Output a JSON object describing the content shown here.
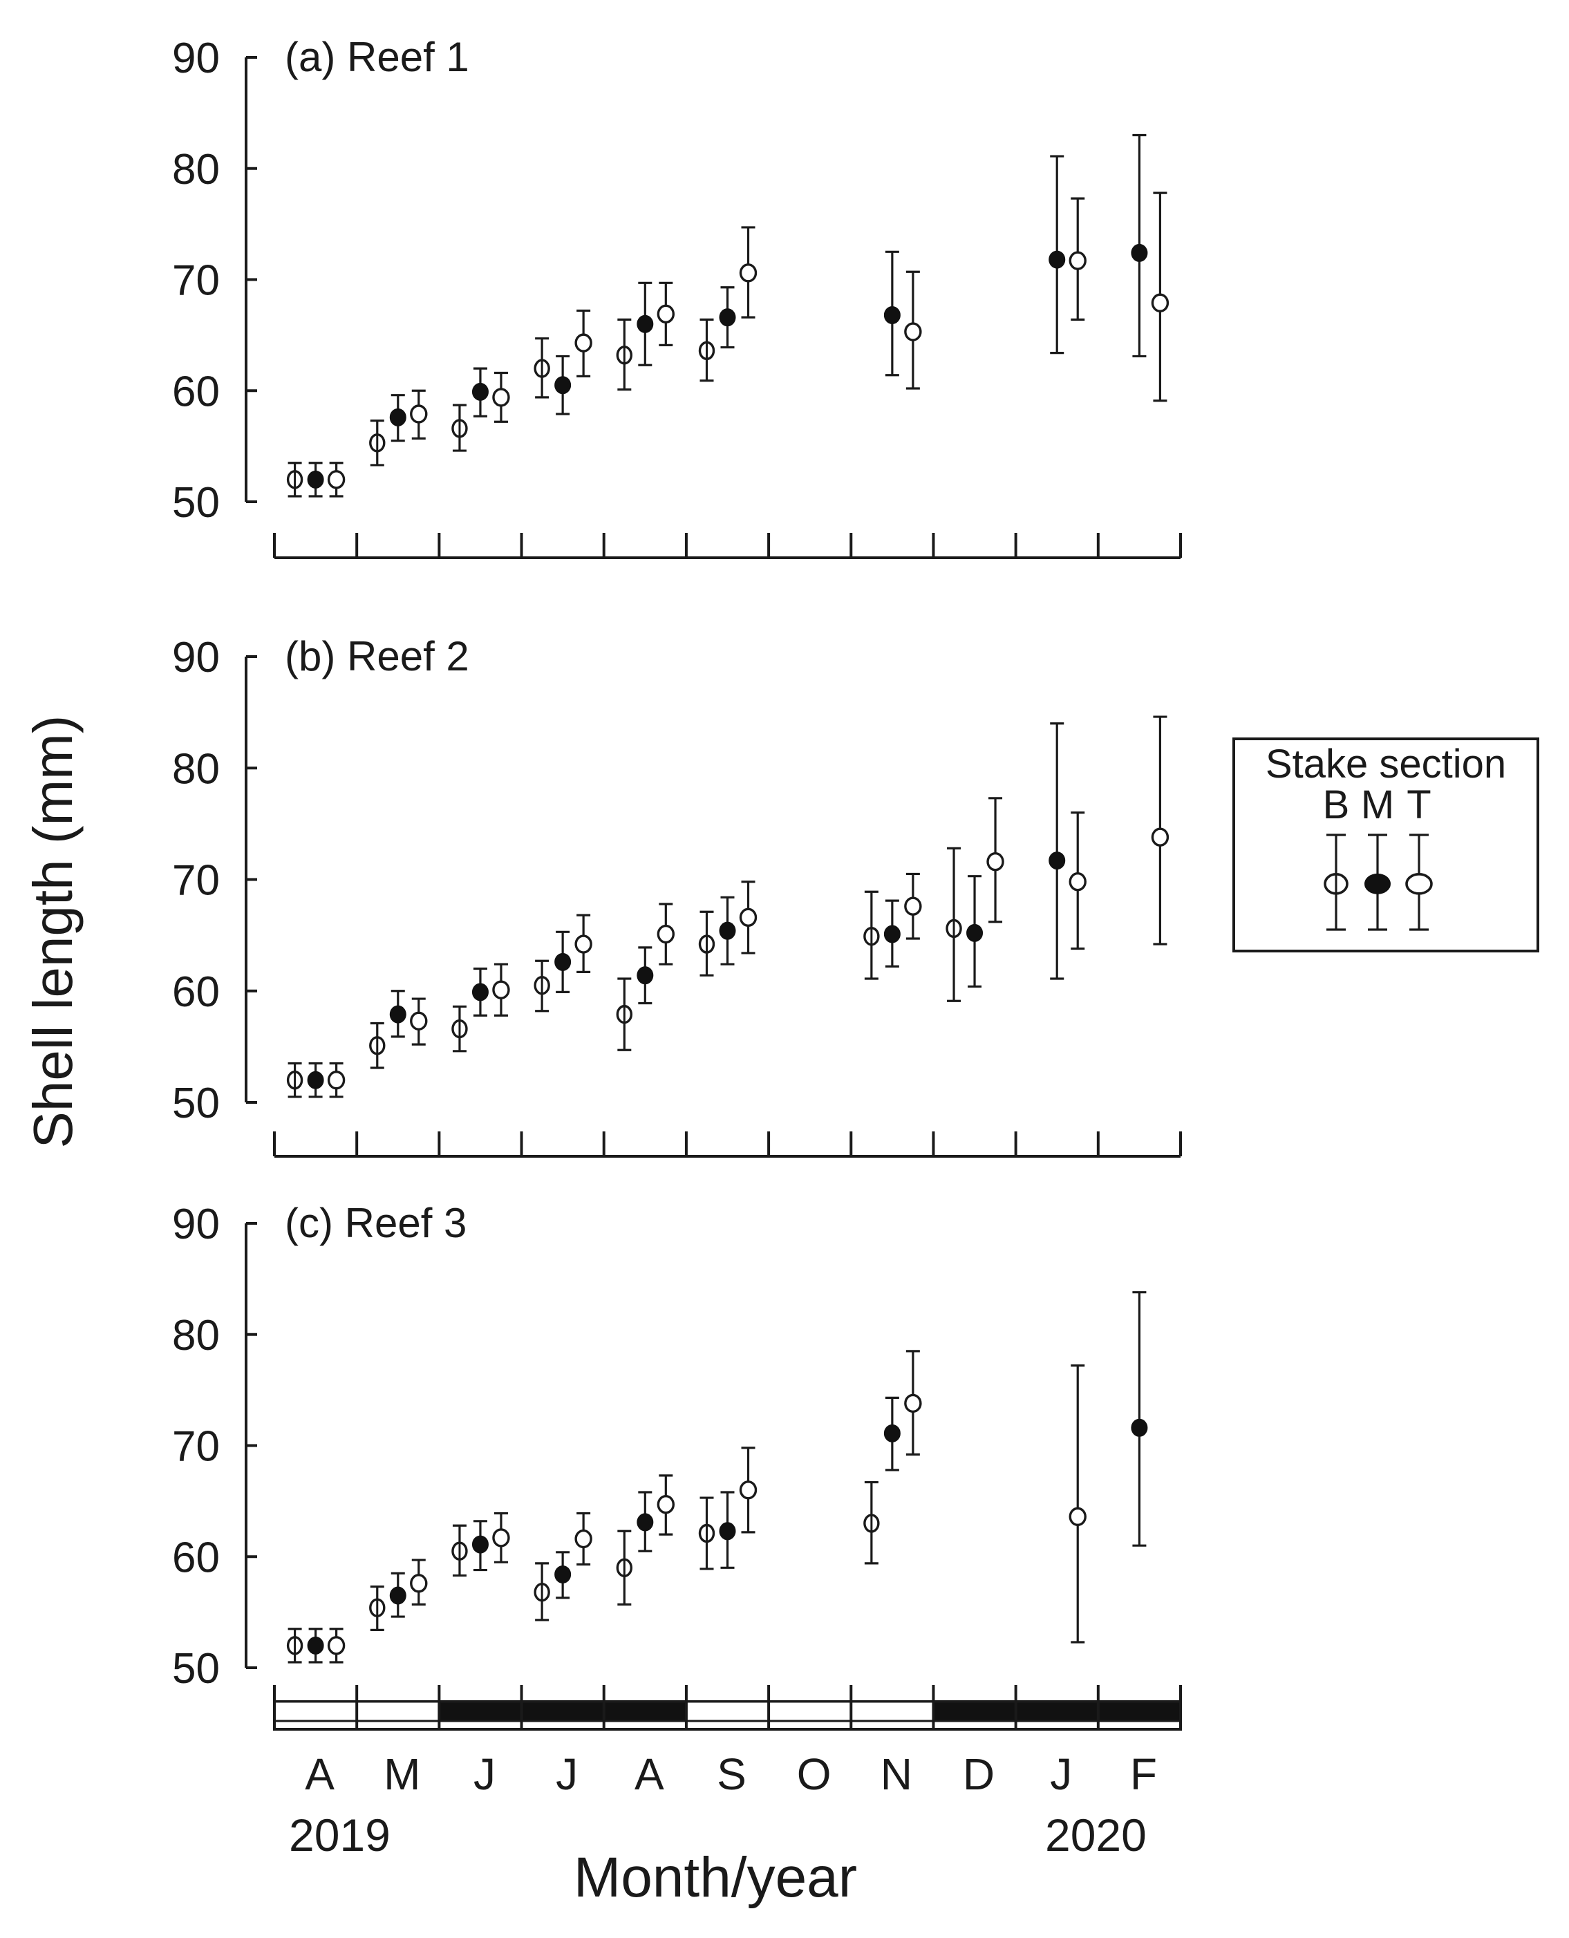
{
  "figure": {
    "ylabel": "Shell length (mm)",
    "xlabel": "Month/year",
    "year_start": "2019",
    "year_end": "2020",
    "months": [
      "A",
      "M",
      "J",
      "J",
      "A",
      "S",
      "O",
      "N",
      "D",
      "J",
      "F"
    ],
    "season_bar": [
      "white",
      "white",
      "black",
      "black",
      "black",
      "white",
      "white",
      "white",
      "black",
      "black",
      "black"
    ],
    "legend": {
      "title": "Stake section",
      "labels": [
        "B",
        "M",
        "T"
      ],
      "example_mean": 69.7,
      "example_low": 65.5,
      "example_high": 74.2
    }
  },
  "chart_data": [
    {
      "type": "scatter",
      "title": "(a) Reef 1",
      "ylim": [
        50,
        90
      ],
      "yticks": [
        50,
        60,
        70,
        80,
        90
      ],
      "series": [
        {
          "name": "B",
          "points": [
            {
              "x": 0,
              "y": 52.0,
              "lo": 50.5,
              "hi": 53.5
            },
            {
              "x": 1,
              "y": 55.3,
              "lo": 53.3,
              "hi": 57.3
            },
            {
              "x": 2,
              "y": 56.6,
              "lo": 54.6,
              "hi": 58.7
            },
            {
              "x": 3,
              "y": 62.0,
              "lo": 59.4,
              "hi": 64.7
            },
            {
              "x": 4,
              "y": 63.2,
              "lo": 60.1,
              "hi": 66.4
            },
            {
              "x": 5,
              "y": 63.6,
              "lo": 60.9,
              "hi": 66.4
            }
          ]
        },
        {
          "name": "M",
          "points": [
            {
              "x": 0,
              "y": 52.0,
              "lo": 50.5,
              "hi": 53.5
            },
            {
              "x": 1,
              "y": 57.6,
              "lo": 55.5,
              "hi": 59.6
            },
            {
              "x": 2,
              "y": 59.9,
              "lo": 57.7,
              "hi": 62.0
            },
            {
              "x": 3,
              "y": 60.5,
              "lo": 57.9,
              "hi": 63.1
            },
            {
              "x": 4,
              "y": 66.0,
              "lo": 62.3,
              "hi": 69.7
            },
            {
              "x": 5,
              "y": 66.6,
              "lo": 63.9,
              "hi": 69.3
            },
            {
              "x": 7,
              "y": 66.8,
              "lo": 61.4,
              "hi": 72.5
            },
            {
              "x": 9,
              "y": 71.8,
              "lo": 63.4,
              "hi": 81.1
            },
            {
              "x": 10,
              "y": 72.4,
              "lo": 63.1,
              "hi": 83.0
            }
          ]
        },
        {
          "name": "T",
          "points": [
            {
              "x": 0,
              "y": 52.0,
              "lo": 50.5,
              "hi": 53.5
            },
            {
              "x": 1,
              "y": 57.9,
              "lo": 55.7,
              "hi": 60.0
            },
            {
              "x": 2,
              "y": 59.4,
              "lo": 57.2,
              "hi": 61.6
            },
            {
              "x": 3,
              "y": 64.3,
              "lo": 61.3,
              "hi": 67.2
            },
            {
              "x": 4,
              "y": 66.9,
              "lo": 64.1,
              "hi": 69.7
            },
            {
              "x": 5,
              "y": 70.6,
              "lo": 66.6,
              "hi": 74.7
            },
            {
              "x": 7,
              "y": 65.3,
              "lo": 60.2,
              "hi": 70.7
            },
            {
              "x": 9,
              "y": 71.7,
              "lo": 66.4,
              "hi": 77.3
            },
            {
              "x": 10,
              "y": 67.9,
              "lo": 59.1,
              "hi": 77.8
            }
          ]
        }
      ]
    },
    {
      "type": "scatter",
      "title": "(b) Reef 2",
      "ylim": [
        50,
        90
      ],
      "yticks": [
        50,
        60,
        70,
        80,
        90
      ],
      "series": [
        {
          "name": "B",
          "points": [
            {
              "x": 0,
              "y": 52.0,
              "lo": 50.5,
              "hi": 53.5
            },
            {
              "x": 1,
              "y": 55.1,
              "lo": 53.1,
              "hi": 57.1
            },
            {
              "x": 2,
              "y": 56.6,
              "lo": 54.6,
              "hi": 58.6
            },
            {
              "x": 3,
              "y": 60.5,
              "lo": 58.2,
              "hi": 62.7
            },
            {
              "x": 4,
              "y": 57.9,
              "lo": 54.7,
              "hi": 61.1
            },
            {
              "x": 5,
              "y": 64.2,
              "lo": 61.4,
              "hi": 67.1
            },
            {
              "x": 7,
              "y": 64.9,
              "lo": 61.1,
              "hi": 68.9
            },
            {
              "x": 8,
              "y": 65.6,
              "lo": 59.1,
              "hi": 72.8
            }
          ]
        },
        {
          "name": "M",
          "points": [
            {
              "x": 0,
              "y": 52.0,
              "lo": 50.5,
              "hi": 53.5
            },
            {
              "x": 1,
              "y": 57.9,
              "lo": 55.9,
              "hi": 60.0
            },
            {
              "x": 2,
              "y": 59.9,
              "lo": 57.8,
              "hi": 62.0
            },
            {
              "x": 3,
              "y": 62.6,
              "lo": 59.9,
              "hi": 65.3
            },
            {
              "x": 4,
              "y": 61.4,
              "lo": 58.9,
              "hi": 63.9
            },
            {
              "x": 5,
              "y": 65.4,
              "lo": 62.4,
              "hi": 68.4
            },
            {
              "x": 7,
              "y": 65.1,
              "lo": 62.2,
              "hi": 68.1
            },
            {
              "x": 8,
              "y": 65.2,
              "lo": 60.4,
              "hi": 70.3
            },
            {
              "x": 9,
              "y": 71.7,
              "lo": 61.1,
              "hi": 84.0
            }
          ]
        },
        {
          "name": "T",
          "points": [
            {
              "x": 0,
              "y": 52.0,
              "lo": 50.5,
              "hi": 53.5
            },
            {
              "x": 1,
              "y": 57.3,
              "lo": 55.2,
              "hi": 59.3
            },
            {
              "x": 2,
              "y": 60.1,
              "lo": 57.8,
              "hi": 62.4
            },
            {
              "x": 3,
              "y": 64.2,
              "lo": 61.7,
              "hi": 66.8
            },
            {
              "x": 4,
              "y": 65.1,
              "lo": 62.4,
              "hi": 67.8
            },
            {
              "x": 5,
              "y": 66.6,
              "lo": 63.4,
              "hi": 69.8
            },
            {
              "x": 7,
              "y": 67.6,
              "lo": 64.7,
              "hi": 70.5
            },
            {
              "x": 8,
              "y": 71.6,
              "lo": 66.2,
              "hi": 77.3
            },
            {
              "x": 9,
              "y": 69.8,
              "lo": 63.8,
              "hi": 76.0
            },
            {
              "x": 10,
              "y": 73.8,
              "lo": 64.2,
              "hi": 84.6
            }
          ]
        }
      ]
    },
    {
      "type": "scatter",
      "title": "(c) Reef 3",
      "ylim": [
        50,
        90
      ],
      "yticks": [
        50,
        60,
        70,
        80,
        90
      ],
      "series": [
        {
          "name": "B",
          "points": [
            {
              "x": 0,
              "y": 52.0,
              "lo": 50.5,
              "hi": 53.5
            },
            {
              "x": 1,
              "y": 55.4,
              "lo": 53.4,
              "hi": 57.3
            },
            {
              "x": 2,
              "y": 60.5,
              "lo": 58.3,
              "hi": 62.8
            },
            {
              "x": 3,
              "y": 56.8,
              "lo": 54.3,
              "hi": 59.4
            },
            {
              "x": 4,
              "y": 59.0,
              "lo": 55.7,
              "hi": 62.3
            },
            {
              "x": 5,
              "y": 62.1,
              "lo": 58.9,
              "hi": 65.3
            },
            {
              "x": 7,
              "y": 63.0,
              "lo": 59.4,
              "hi": 66.7
            }
          ]
        },
        {
          "name": "M",
          "points": [
            {
              "x": 0,
              "y": 52.0,
              "lo": 50.5,
              "hi": 53.5
            },
            {
              "x": 1,
              "y": 56.5,
              "lo": 54.6,
              "hi": 58.5
            },
            {
              "x": 2,
              "y": 61.1,
              "lo": 58.8,
              "hi": 63.2
            },
            {
              "x": 3,
              "y": 58.4,
              "lo": 56.3,
              "hi": 60.4
            },
            {
              "x": 4,
              "y": 63.1,
              "lo": 60.5,
              "hi": 65.8
            },
            {
              "x": 5,
              "y": 62.3,
              "lo": 59.0,
              "hi": 65.8
            },
            {
              "x": 7,
              "y": 71.1,
              "lo": 67.8,
              "hi": 74.3
            },
            {
              "x": 10,
              "y": 71.6,
              "lo": 61.0,
              "hi": 83.8
            }
          ]
        },
        {
          "name": "T",
          "points": [
            {
              "x": 0,
              "y": 52.0,
              "lo": 50.5,
              "hi": 53.5
            },
            {
              "x": 1,
              "y": 57.6,
              "lo": 55.7,
              "hi": 59.7
            },
            {
              "x": 2,
              "y": 61.7,
              "lo": 59.5,
              "hi": 63.9
            },
            {
              "x": 3,
              "y": 61.6,
              "lo": 59.3,
              "hi": 63.9
            },
            {
              "x": 4,
              "y": 64.7,
              "lo": 62.0,
              "hi": 67.3
            },
            {
              "x": 5,
              "y": 66.0,
              "lo": 62.2,
              "hi": 69.8
            },
            {
              "x": 7,
              "y": 73.8,
              "lo": 69.2,
              "hi": 78.5
            },
            {
              "x": 9,
              "y": 63.6,
              "lo": 52.3,
              "hi": 77.2
            }
          ]
        }
      ]
    }
  ]
}
